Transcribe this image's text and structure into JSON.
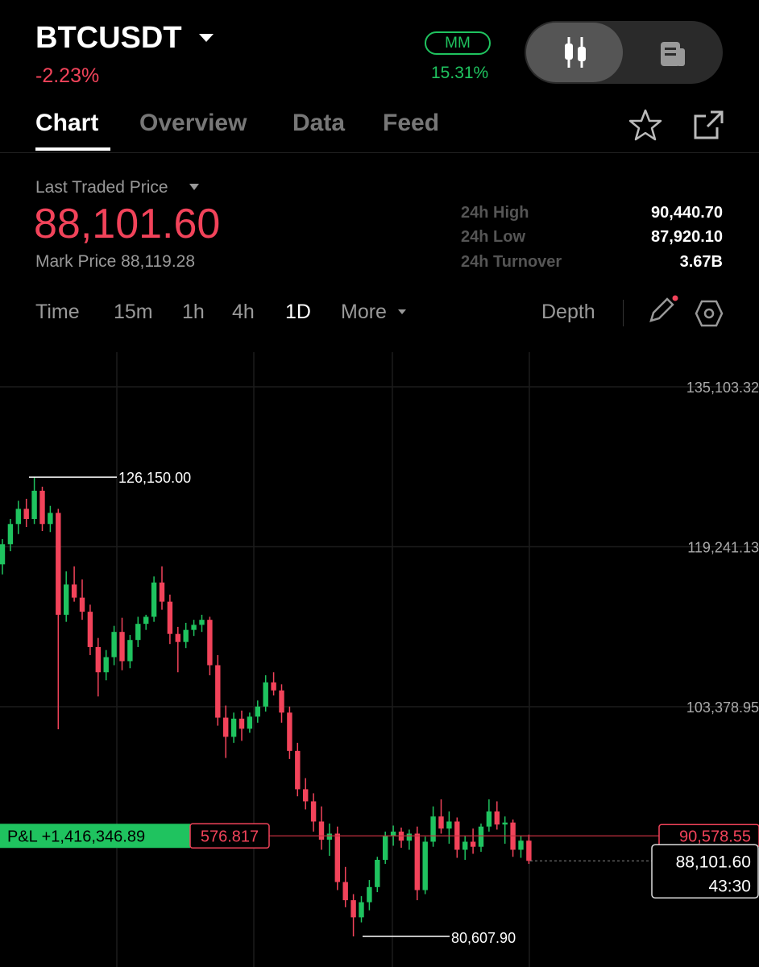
{
  "header": {
    "symbol": "BTCUSDT",
    "change": "-2.23%",
    "badge": "MM",
    "badge_value": "15.31%"
  },
  "tabs": [
    "Chart",
    "Overview",
    "Data",
    "Feed"
  ],
  "price_panel": {
    "label": "Last Traded Price",
    "price": "88,101.60",
    "mark_price": "Mark Price 88,119.28",
    "stats": [
      {
        "label": "24h High",
        "value": "90,440.70"
      },
      {
        "label": "24h Low",
        "value": "87,920.10"
      },
      {
        "label": "24h Turnover",
        "value": "3.67B"
      }
    ]
  },
  "timeframes": [
    "Time",
    "15m",
    "1h",
    "4h",
    "1D",
    "More"
  ],
  "depth": "Depth",
  "chart_data": {
    "type": "candlestick",
    "up_color": "#1fc35f",
    "down_color": "#f2435a",
    "ylim": [
      77575,
      138540
    ],
    "yticks": [
      {
        "value": 103378.95,
        "label": "103,378.95"
      },
      {
        "value": 119241.13,
        "label": "119,241.13"
      },
      {
        "value": 135103.32,
        "label": "135,103.32"
      }
    ],
    "series": [
      {
        "open": [
          117500,
          119500,
          121500,
          123000,
          122000,
          124800,
          121500,
          122600,
          112500,
          115500,
          114200,
          112800,
          109300,
          106800,
          108300,
          110800,
          107900,
          110000,
          111600,
          112300,
          115700,
          113800,
          110600,
          109800,
          111000,
          111500,
          112000,
          107500,
          102300,
          100400,
          102200,
          101200,
          102400,
          103400,
          105800,
          105000,
          102800,
          99000,
          95200,
          94000,
          92000,
          90200,
          90800,
          86000,
          84200,
          82500,
          84000,
          85500,
          88200,
          90600,
          91000,
          90100,
          90800,
          85200,
          90000,
          92500,
          91300,
          92000,
          89200,
          90000,
          89500,
          91500,
          93000,
          91700,
          91900,
          89200,
          90100
        ],
        "high": [
          120000,
          122000,
          123800,
          124000,
          126150,
          125200,
          123300,
          123000,
          116800,
          117300,
          116000,
          113500,
          110200,
          109000,
          111400,
          112200,
          110500,
          112300,
          112500,
          116300,
          117300,
          114500,
          111300,
          111700,
          112000,
          112500,
          112300,
          108500,
          103500,
          102800,
          103000,
          102800,
          104000,
          106500,
          106800,
          105600,
          103400,
          99800,
          96300,
          94800,
          93500,
          91800,
          91500,
          87500,
          84800,
          84600,
          86200,
          88500,
          91000,
          91600,
          91400,
          91200,
          91500,
          90500,
          93500,
          94200,
          93000,
          92400,
          90600,
          91300,
          91800,
          94200,
          94000,
          92500,
          92200,
          90600,
          90700
        ],
        "low": [
          116500,
          118800,
          120500,
          121200,
          121500,
          120800,
          120700,
          101150,
          111800,
          113800,
          112000,
          108500,
          104400,
          106000,
          107500,
          107000,
          107200,
          109300,
          111000,
          111800,
          113000,
          109600,
          106800,
          109200,
          110400,
          110800,
          106500,
          101500,
          98300,
          99800,
          100000,
          100800,
          101800,
          102900,
          104500,
          101800,
          98200,
          94500,
          93200,
          91000,
          89200,
          88600,
          85200,
          83500,
          80607.9,
          82000,
          83200,
          85000,
          87800,
          89600,
          89400,
          89200,
          84200,
          84800,
          89500,
          90800,
          89800,
          88400,
          88200,
          88800,
          89000,
          91000,
          91200,
          89800,
          88500,
          88400,
          87800
        ],
        "close": [
          119500,
          121500,
          123000,
          122000,
          124800,
          121500,
          122600,
          112500,
          115500,
          114200,
          112800,
          109300,
          106800,
          108300,
          110800,
          107900,
          110000,
          111600,
          112300,
          115700,
          113800,
          110600,
          109800,
          111000,
          111500,
          112000,
          107500,
          102300,
          100400,
          102200,
          101200,
          102400,
          103400,
          105800,
          105000,
          102800,
          99000,
          95200,
          94000,
          92000,
          90200,
          90800,
          86000,
          84200,
          82500,
          84000,
          85500,
          88200,
          90600,
          91000,
          90100,
          90800,
          85200,
          90000,
          92500,
          91300,
          92000,
          89200,
          90000,
          89500,
          91500,
          93000,
          91700,
          91900,
          89200,
          90100,
          88101.6
        ]
      }
    ],
    "annotations": {
      "high": {
        "value": 126150,
        "label": "126,150.00"
      },
      "low": {
        "value": 80607.9,
        "label": "80,607.90"
      },
      "position": {
        "value": 90578.55,
        "label": "90,578.55"
      },
      "pnl": "P&L +1,416,346.89",
      "qty": "576.817",
      "last": {
        "value": 88101.6,
        "label": "88,101.60"
      },
      "countdown": "43:30"
    }
  }
}
